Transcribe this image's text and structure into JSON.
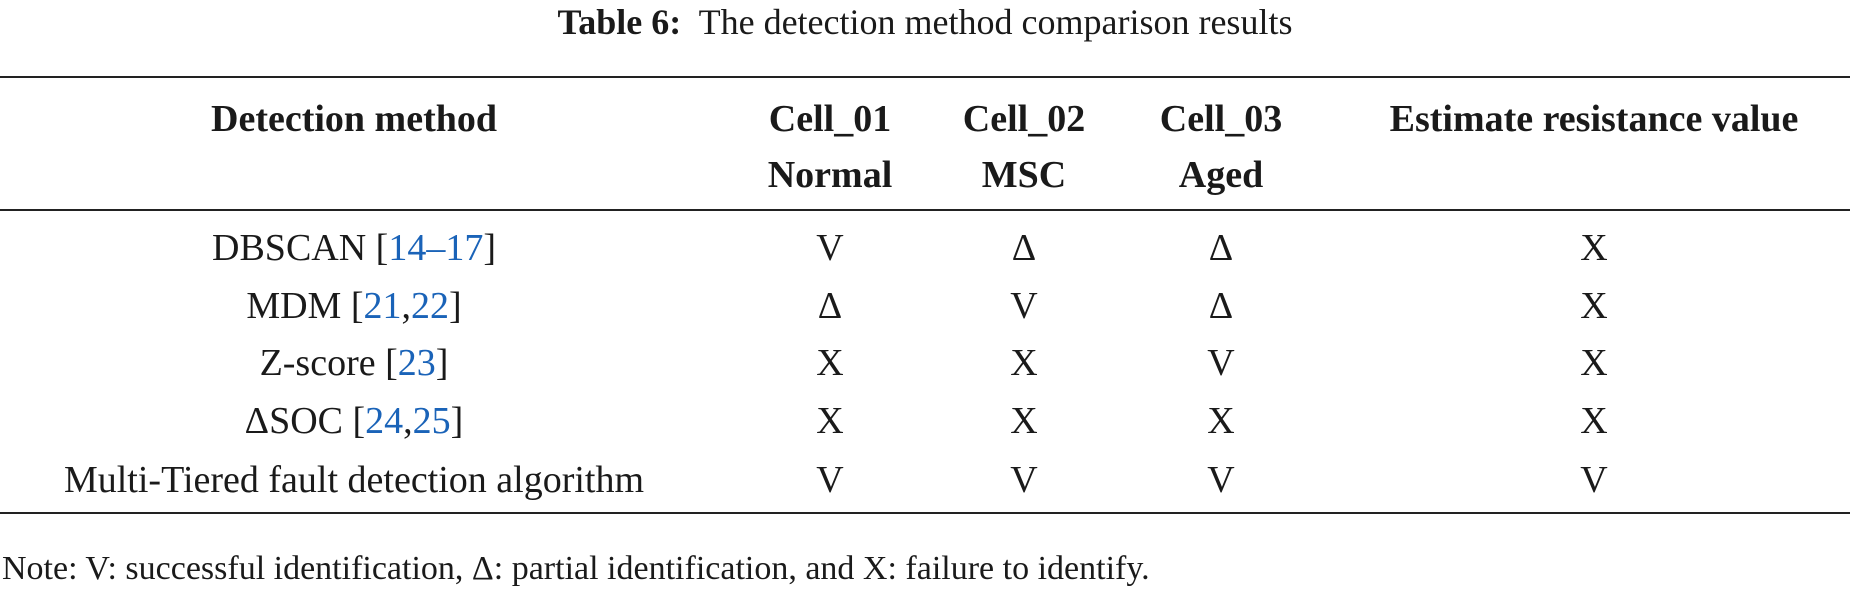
{
  "caption": {
    "label": "Table 6:",
    "text": "The detection method comparison results"
  },
  "table": {
    "header": [
      [
        "Detection method"
      ],
      [
        "Cell_01",
        "Normal"
      ],
      [
        "Cell_02",
        "MSC"
      ],
      [
        "Cell_03",
        "Aged"
      ],
      [
        "Estimate resistance value"
      ]
    ],
    "rows": [
      {
        "method": [
          {
            "text": "DBSCAN ["
          },
          {
            "text": "14–17",
            "link": true
          },
          {
            "text": "]"
          }
        ],
        "cells": [
          "V",
          "Δ",
          "Δ",
          "X"
        ]
      },
      {
        "method": [
          {
            "text": "MDM ["
          },
          {
            "text": "21",
            "link": true
          },
          {
            "text": ","
          },
          {
            "text": "22",
            "link": true
          },
          {
            "text": "]"
          }
        ],
        "cells": [
          "Δ",
          "V",
          "Δ",
          "X"
        ]
      },
      {
        "method": [
          {
            "text": "Z-score ["
          },
          {
            "text": "23",
            "link": true
          },
          {
            "text": "]"
          }
        ],
        "cells": [
          "X",
          "X",
          "V",
          "X"
        ]
      },
      {
        "method": [
          {
            "text": "ΔSOC ["
          },
          {
            "text": "24",
            "link": true
          },
          {
            "text": ","
          },
          {
            "text": "25",
            "link": true
          },
          {
            "text": "]"
          }
        ],
        "cells": [
          "X",
          "X",
          "X",
          "X"
        ]
      },
      {
        "method": [
          {
            "text": "Multi-Tiered fault detection algorithm"
          }
        ],
        "cells": [
          "V",
          "V",
          "V",
          "V"
        ]
      }
    ]
  },
  "note": "Note: V: successful identification, Δ: partial identification, and X: failure to identify."
}
